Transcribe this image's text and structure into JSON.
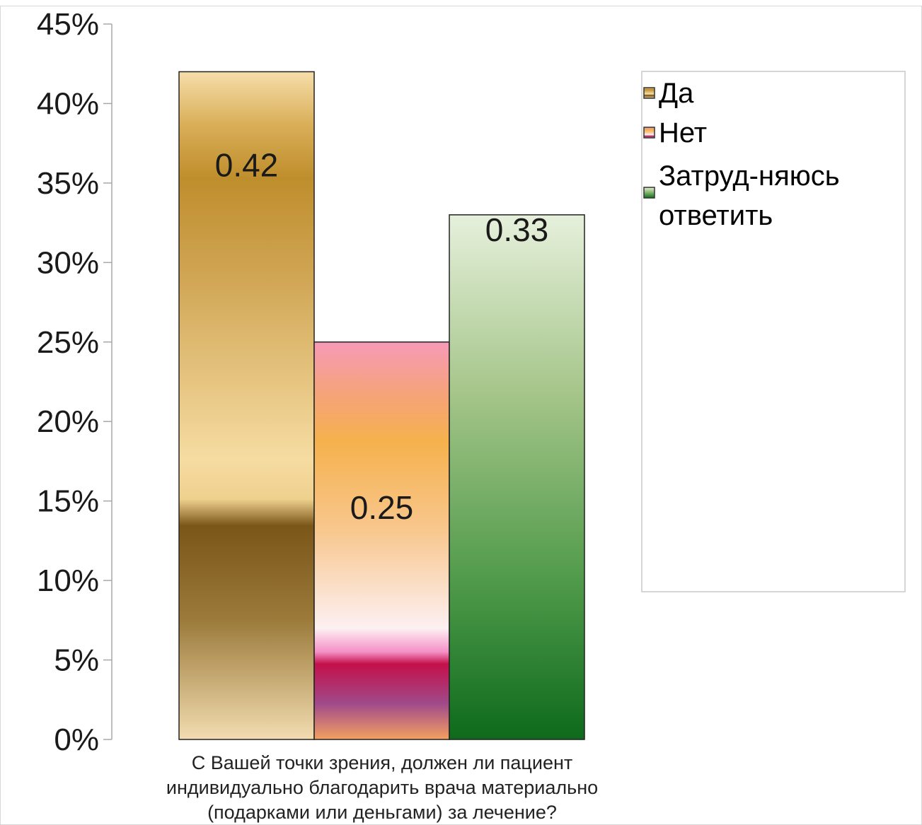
{
  "chart_data": {
    "type": "bar",
    "title": "",
    "xlabel": "",
    "ylabel": "",
    "category_label_lines": [
      "С Вашей точки зрения, должен ли пациент",
      "индивидуально благодарить врача материально",
      "(подарками или деньгами) за лечение?"
    ],
    "ylim": [
      0,
      0.45
    ],
    "y_ticks": [
      0,
      0.05,
      0.1,
      0.15,
      0.2,
      0.25,
      0.3,
      0.35,
      0.4,
      0.45
    ],
    "y_tick_labels": [
      "0%",
      "5%",
      "10%",
      "15%",
      "20%",
      "25%",
      "30%",
      "35%",
      "40%",
      "45%"
    ],
    "legend_position": "right",
    "series": [
      {
        "name": "Да",
        "value": 0.42,
        "value_label": "0.42",
        "color": "#c89530"
      },
      {
        "name": "Нет",
        "value": 0.25,
        "value_label": "0.25",
        "color": "#f4a9a8"
      },
      {
        "name_lines": [
          "Затруд-няюсь",
          "ответить"
        ],
        "value": 0.33,
        "value_label": "0.33",
        "color": "#4f9a4a"
      }
    ]
  }
}
